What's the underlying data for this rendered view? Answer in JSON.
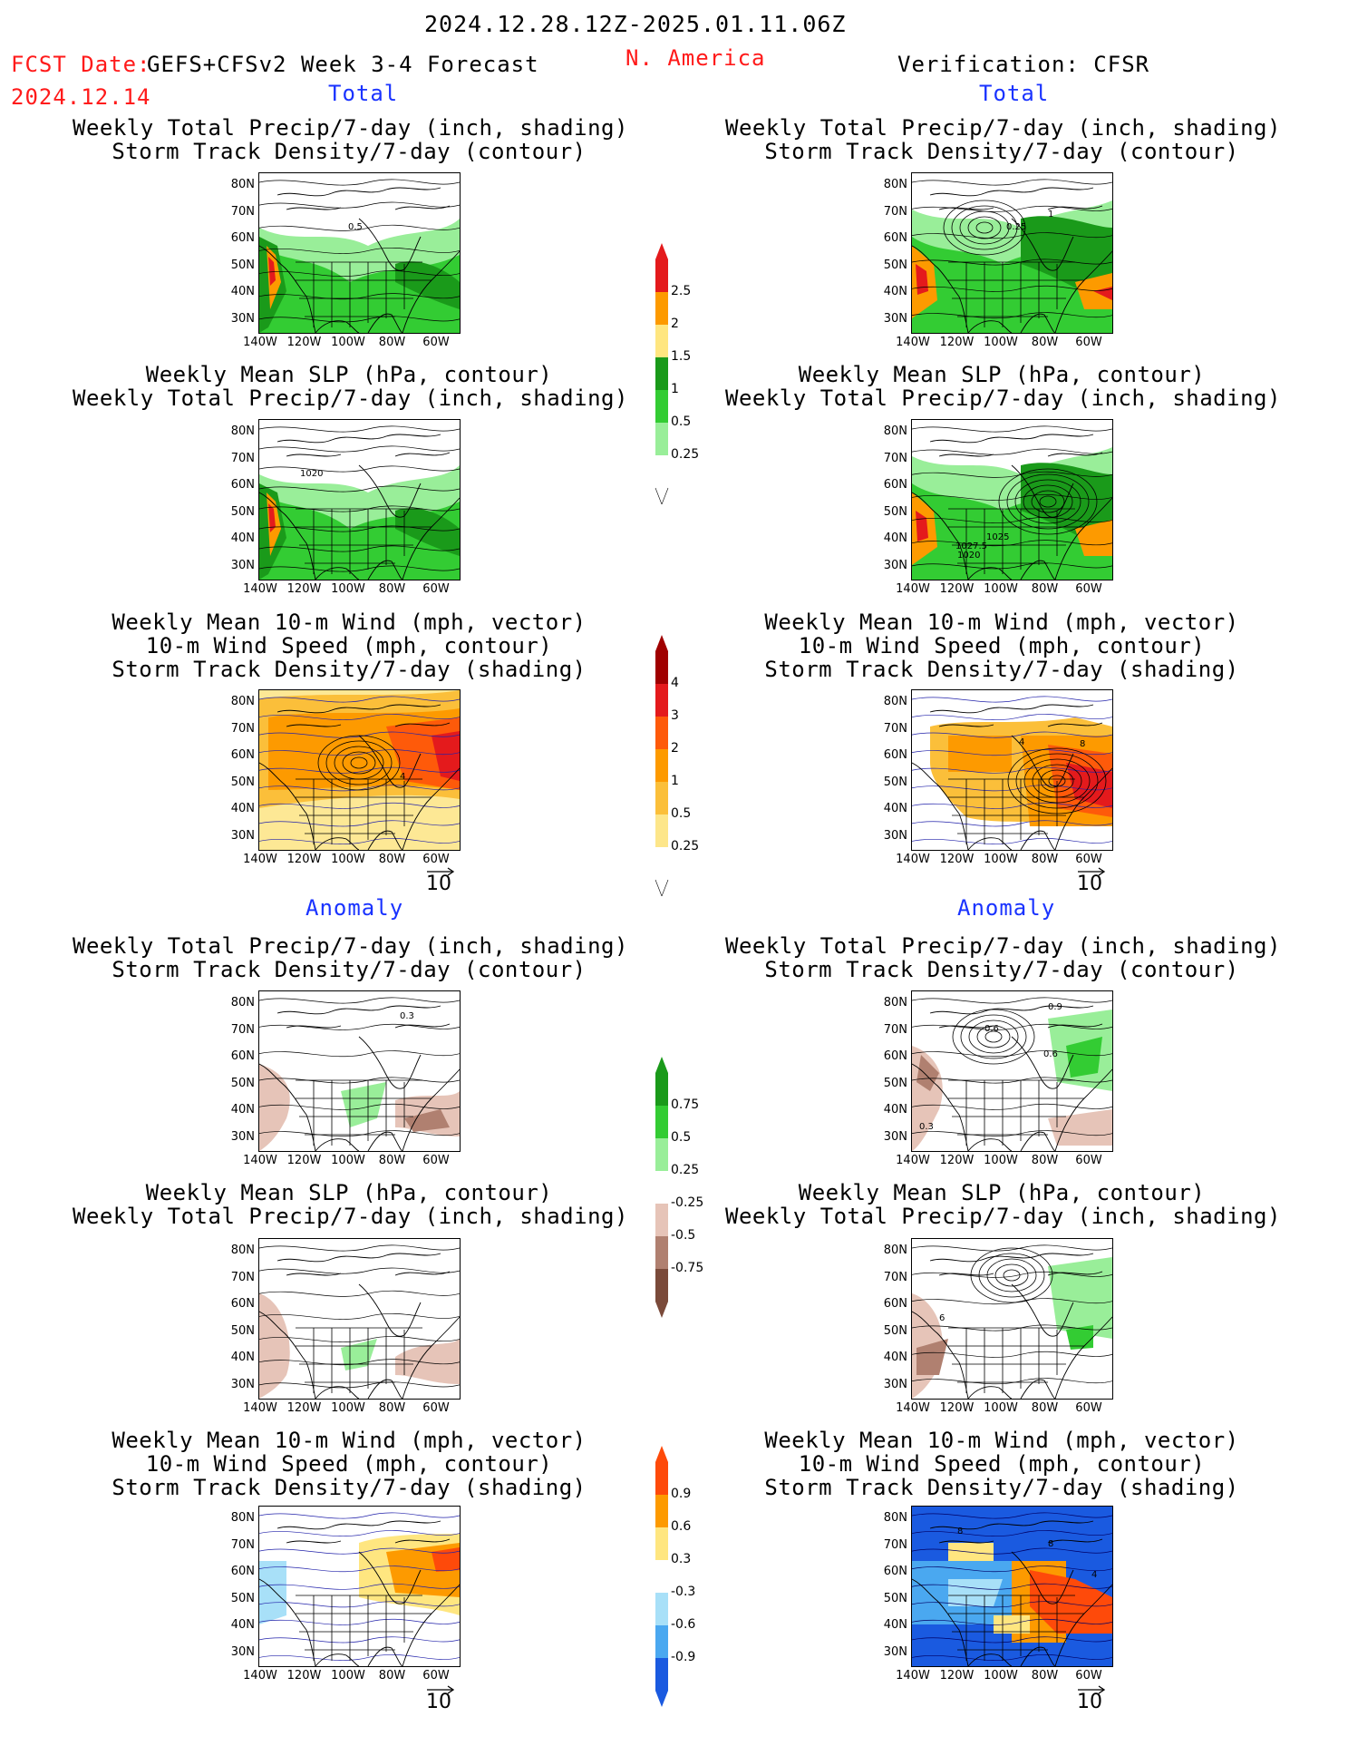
{
  "header": {
    "date_range": "2024.12.28.12Z-2025.01.11.06Z",
    "fcst_date_label": "FCST Date:",
    "fcst_date_value": "2024.12.14",
    "model_title": "GEFS+CFSv2 Week 3-4 Forecast",
    "region": "N. America",
    "verification": "Verification: CFSR"
  },
  "sections": {
    "total_label": "Total",
    "anomaly_label": "Anomaly"
  },
  "panel_titles": {
    "precip_storm": [
      "Weekly Total Precip/7-day (inch, shading)",
      "Storm Track Density/7-day (contour)"
    ],
    "slp_precip": [
      "Weekly Mean SLP (hPa, contour)",
      "Weekly Total Precip/7-day (inch, shading)"
    ],
    "wind_storm": [
      "Weekly Mean 10-m Wind (mph, vector)",
      "10-m Wind Speed (mph, contour)",
      "Storm Track Density/7-day (shading)"
    ]
  },
  "axes": {
    "lat_labels": [
      "80N",
      "70N",
      "60N",
      "50N",
      "40N",
      "30N"
    ],
    "lon_labels": [
      "140W",
      "120W",
      "100W",
      "80W",
      "60W"
    ]
  },
  "vector_reference": "10",
  "map_annotations": {
    "fc_total_precip": "0.5",
    "ob_total_precip": "0.25",
    "ob_total_precip_b": "1",
    "fc_total_slp": "1020",
    "ob_total_slp_a": "1025",
    "ob_total_slp_b": "1027.5",
    "ob_total_slp_c": "1020",
    "fc_total_wind": "4",
    "ob_total_wind_a": "4",
    "ob_total_wind_b": "8",
    "fc_anom_precip": "0.3",
    "ob_anom_precip_a": "0.9",
    "ob_anom_precip_b": "0.6",
    "ob_anom_precip_c": "0.6",
    "ob_anom_precip_d": "0.3",
    "ob_anom_slp": "6",
    "ob_anom_wind_a": "8",
    "ob_anom_wind_b": "8",
    "ob_anom_wind_c": "4"
  },
  "colorbars": {
    "precip_total": {
      "labels": [
        "2.5",
        "2",
        "1.5",
        "1",
        "0.5",
        "0.25"
      ],
      "colors": [
        "#e41a1c",
        "#fd9a00",
        "#ffe680",
        "#1a9a1a",
        "#33cc33",
        "#99ee99",
        "#ffffff"
      ]
    },
    "storm_total": {
      "labels": [
        "4",
        "3",
        "2",
        "1",
        "0.5",
        "0.25"
      ],
      "colors": [
        "#a00000",
        "#e41a1c",
        "#fe5a0a",
        "#fd9a00",
        "#fbbf3a",
        "#fde68a",
        "#ffffff"
      ]
    },
    "precip_anom": {
      "labels": [
        "0.75",
        "0.5",
        "0.25",
        "-0.25",
        "-0.5",
        "-0.75"
      ],
      "colors": [
        "#1a9a1a",
        "#33cc33",
        "#99ee99",
        "#ffffff",
        "#e6c4b8",
        "#b08070",
        "#7a4a3a"
      ]
    },
    "storm_anom": {
      "labels": [
        "0.9",
        "0.6",
        "0.3",
        "-0.3",
        "-0.6",
        "-0.9"
      ],
      "colors": [
        "#fe4a0a",
        "#fd9a00",
        "#ffe680",
        "#ffffff",
        "#a8e0f8",
        "#4aa8f0",
        "#1a5ae0"
      ]
    }
  }
}
